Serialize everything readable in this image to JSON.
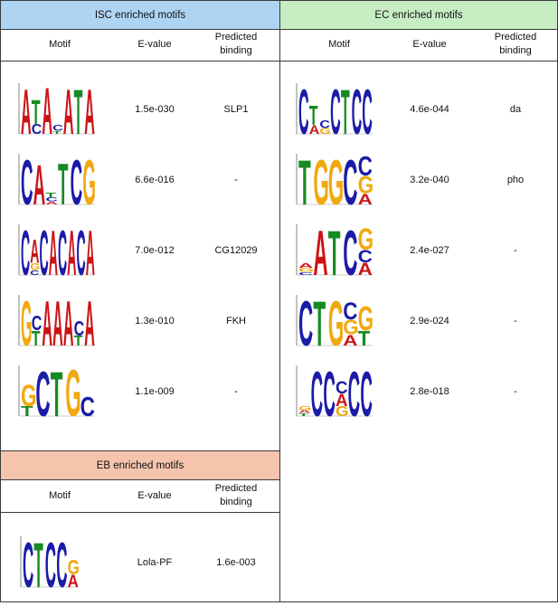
{
  "colors": {
    "isc_header": "#aed4f3",
    "ec_header": "#c7edc3",
    "eb_header": "#f6c4ad",
    "A": "#cc1417",
    "C": "#1b1ba8",
    "G": "#f1a90f",
    "T": "#178a24",
    "border": "#3a3a3a"
  },
  "columns": {
    "motif": "Motif",
    "evalue": "E-value",
    "binding_line1": "Predicted",
    "binding_line2": "binding"
  },
  "isc": {
    "title": "ISC enriched motifs",
    "rows": [
      {
        "logo": "isc-motif-1",
        "evalue": "1.5e-030",
        "binding": "SLP1",
        "positions": [
          [
            [
              "A",
              0.92
            ]
          ],
          [
            [
              "T",
              0.5
            ],
            [
              "C",
              0.2
            ]
          ],
          [
            [
              "A",
              0.95
            ]
          ],
          [
            [
              "C",
              0.12
            ],
            [
              "T",
              0.06
            ]
          ],
          [
            [
              "A",
              0.92
            ]
          ],
          [
            [
              "T",
              0.92
            ]
          ],
          [
            [
              "A",
              0.92
            ]
          ]
        ]
      },
      {
        "logo": "isc-motif-2",
        "evalue": "6.6e-016",
        "binding": "-",
        "positions": [
          [
            [
              "C",
              0.92
            ]
          ],
          [
            [
              "A",
              0.82
            ]
          ],
          [
            [
              "T",
              0.1
            ],
            [
              "C",
              0.08
            ],
            [
              "A",
              0.06
            ]
          ],
          [
            [
              "T",
              0.85
            ]
          ],
          [
            [
              "C",
              0.92
            ]
          ],
          [
            [
              "G",
              0.92
            ]
          ]
        ]
      },
      {
        "logo": "isc-motif-3",
        "evalue": "7.0e-012",
        "binding": "CG12029",
        "positions": [
          [
            [
              "C",
              0.92
            ]
          ],
          [
            [
              "A",
              0.48
            ],
            [
              "G",
              0.14
            ],
            [
              "C",
              0.1
            ]
          ],
          [
            [
              "C",
              0.92
            ]
          ],
          [
            [
              "A",
              0.92
            ]
          ],
          [
            [
              "C",
              0.92
            ]
          ],
          [
            [
              "A",
              0.92
            ]
          ],
          [
            [
              "C",
              0.92
            ]
          ],
          [
            [
              "A",
              0.92
            ]
          ]
        ]
      },
      {
        "logo": "isc-motif-4",
        "evalue": "1.3e-010",
        "binding": "FKH",
        "positions": [
          [
            [
              "G",
              0.92
            ]
          ],
          [
            [
              "T",
              0.3
            ],
            [
              "C",
              0.3
            ]
          ],
          [
            [
              "A",
              0.92
            ]
          ],
          [
            [
              "A",
              0.92
            ]
          ],
          [
            [
              "A",
              0.92
            ]
          ],
          [
            [
              "T",
              0.2
            ],
            [
              "C",
              0.3
            ]
          ],
          [
            [
              "A",
              0.92
            ]
          ]
        ]
      },
      {
        "logo": "isc-motif-5",
        "evalue": "1.1e-009",
        "binding": "-",
        "positions": [
          [
            [
              "G",
              0.45
            ],
            [
              "T",
              0.2
            ]
          ],
          [
            [
              "C",
              0.92
            ]
          ],
          [
            [
              "T",
              0.92
            ]
          ],
          [
            [
              "G",
              0.95
            ]
          ],
          [
            [
              "C",
              0.4
            ]
          ]
        ]
      }
    ]
  },
  "ec": {
    "title": "EC enriched motifs",
    "rows": [
      {
        "logo": "ec-motif-1",
        "evalue": "4.6e-044",
        "binding": "da",
        "positions": [
          [
            [
              "C",
              0.92
            ]
          ],
          [
            [
              "T",
              0.4
            ],
            [
              "A",
              0.18
            ]
          ],
          [
            [
              "C",
              0.15
            ],
            [
              "G",
              0.12
            ]
          ],
          [
            [
              "C",
              0.92
            ]
          ],
          [
            [
              "T",
              0.92
            ]
          ],
          [
            [
              "C",
              0.92
            ]
          ],
          [
            [
              "C",
              0.92
            ]
          ]
        ]
      },
      {
        "logo": "ec-motif-2",
        "evalue": "3.2e-040",
        "binding": "pho",
        "positions": [
          [
            [
              "T",
              0.92
            ]
          ],
          [
            [
              "G",
              0.92
            ]
          ],
          [
            [
              "G",
              0.92
            ]
          ],
          [
            [
              "C",
              0.92
            ]
          ],
          [
            [
              "C",
              0.4
            ],
            [
              "G",
              0.35
            ],
            [
              "A",
              0.22
            ]
          ]
        ]
      },
      {
        "logo": "ec-motif-3",
        "evalue": "2.4e-027",
        "binding": "-",
        "positions": [
          [
            [
              "A",
              0.1
            ],
            [
              "G",
              0.08
            ],
            [
              "C",
              0.06
            ]
          ],
          [
            [
              "A",
              0.92
            ]
          ],
          [
            [
              "T",
              0.92
            ]
          ],
          [
            [
              "C",
              0.92
            ]
          ],
          [
            [
              "G",
              0.45
            ],
            [
              "A",
              0.25
            ],
            [
              "C",
              0.25
            ]
          ]
        ]
      },
      {
        "logo": "ec-motif-4",
        "evalue": "2.9e-024",
        "binding": "-",
        "positions": [
          [
            [
              "C",
              0.92
            ]
          ],
          [
            [
              "T",
              0.92
            ]
          ],
          [
            [
              "G",
              0.92
            ]
          ],
          [
            [
              "C",
              0.35
            ],
            [
              "G",
              0.3
            ],
            [
              "A",
              0.22
            ]
          ],
          [
            [
              "T",
              0.3
            ],
            [
              "G",
              0.5
            ]
          ]
        ]
      },
      {
        "logo": "ec-motif-5",
        "evalue": "2.8e-018",
        "binding": "-",
        "positions": [
          [
            [
              "G",
              0.08
            ],
            [
              "T",
              0.06
            ],
            [
              "A",
              0.06
            ]
          ],
          [
            [
              "C",
              0.92
            ]
          ],
          [
            [
              "C",
              0.92
            ]
          ],
          [
            [
              "A",
              0.25
            ],
            [
              "G",
              0.2
            ],
            [
              "C",
              0.25
            ]
          ],
          [
            [
              "C",
              0.92
            ]
          ],
          [
            [
              "C",
              0.92
            ]
          ]
        ]
      }
    ]
  },
  "eb": {
    "title": "EB enriched motifs",
    "rows": [
      {
        "logo": "eb-motif-1",
        "evalue": "Lola-PF",
        "binding": "1.6e-003",
        "positions": [
          [
            [
              "C",
              0.92
            ]
          ],
          [
            [
              "T",
              0.92
            ]
          ],
          [
            [
              "C",
              0.92
            ]
          ],
          [
            [
              "C",
              0.92
            ]
          ],
          [
            [
              "G",
              0.3
            ],
            [
              "A",
              0.25
            ]
          ]
        ]
      }
    ]
  }
}
